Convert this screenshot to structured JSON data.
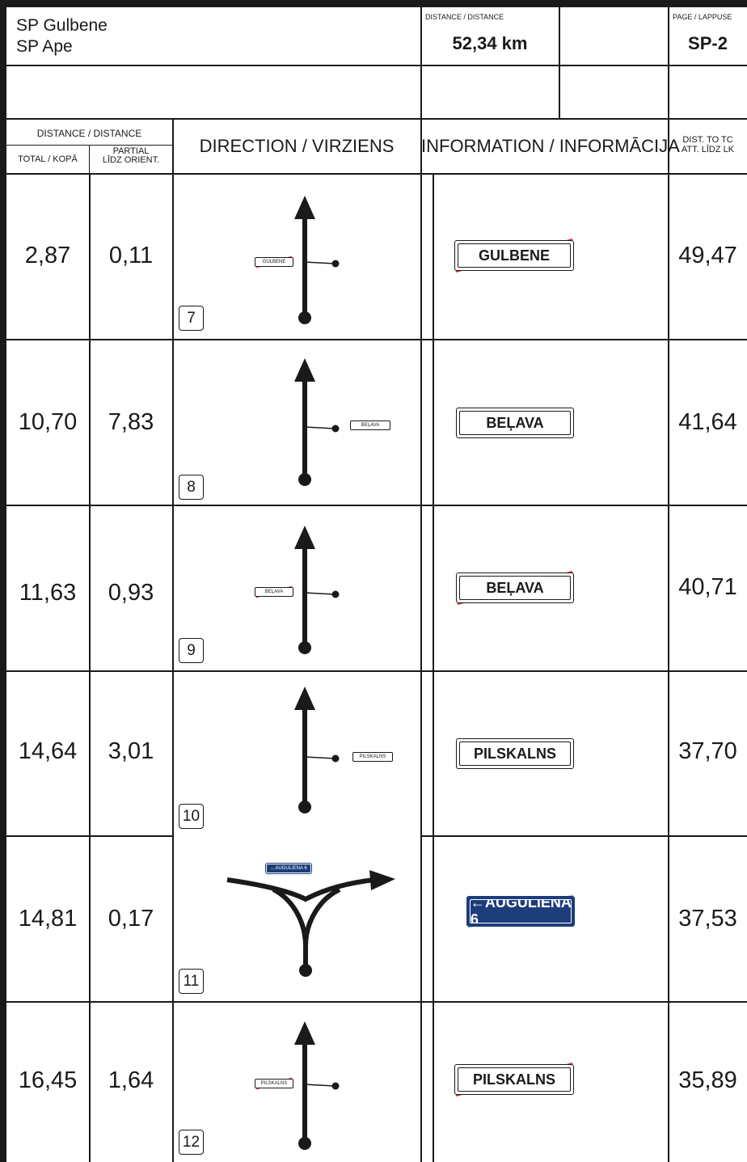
{
  "header": {
    "start": "SP Gulbene",
    "end": "SP Ape",
    "distance_label": "DISTANCE / DISTANCE",
    "distance_value": "52,34 km",
    "page_label": "PAGE / LAPPUSE",
    "page_value": "SP-2"
  },
  "columns": {
    "distance": "DISTANCE / DISTANCE",
    "total": "TOTAL / KOPĀ",
    "partial_line1": "PARTIAL",
    "partial_line2": "LĪDZ ORIENT.",
    "direction": "DIRECTION / VIRZIENS",
    "information": "INFORMATION / INFORMĀCIJA",
    "dist_tc_line1": "DIST. TO TC",
    "dist_tc_line2": "ATT. LĪDZ LK"
  },
  "rows": [
    {
      "total": "2,87",
      "partial": "0,11",
      "step": "7",
      "sign": "GULBENE",
      "sign_style": "white-crossed",
      "dist_tc": "49,47",
      "maneuver": "straight",
      "side": "left"
    },
    {
      "total": "10,70",
      "partial": "7,83",
      "step": "8",
      "sign": "BEĻAVA",
      "sign_style": "white",
      "dist_tc": "41,64",
      "maneuver": "straight",
      "side": "right"
    },
    {
      "total": "11,63",
      "partial": "0,93",
      "step": "9",
      "sign": "BEĻAVA",
      "sign_style": "white-crossed",
      "dist_tc": "40,71",
      "maneuver": "straight",
      "side": "left"
    },
    {
      "total": "14,64",
      "partial": "3,01",
      "step": "10",
      "sign": "PILSKALNS",
      "sign_style": "white",
      "dist_tc": "37,70",
      "maneuver": "straight",
      "side": "right"
    },
    {
      "total": "14,81",
      "partial": "0,17",
      "step": "11",
      "sign": "←AUGULIENA 6",
      "sign_style": "blue-crossed",
      "dist_tc": "37,53",
      "maneuver": "t-junction-right",
      "side": "top"
    },
    {
      "total": "16,45",
      "partial": "1,64",
      "step": "12",
      "sign": "PILSKALNS",
      "sign_style": "white-crossed",
      "dist_tc": "35,89",
      "maneuver": "straight",
      "side": "left"
    }
  ],
  "colors": {
    "ink": "#1a1a1a",
    "cross_red": "#d9262b",
    "sign_blue": "#1c3d7a"
  }
}
